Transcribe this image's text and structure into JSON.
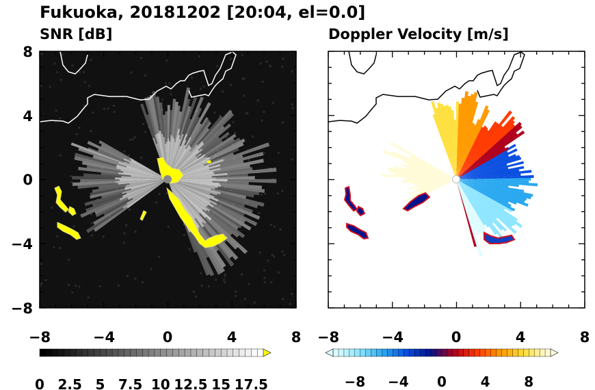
{
  "figure": {
    "title": "Fukuoka, 20181202 [20:04, el=0.0]"
  },
  "chart_data": [
    {
      "type": "heatmap",
      "title": "SNR [dB]",
      "xlim": [
        -8,
        8
      ],
      "ylim": [
        -8,
        8
      ],
      "x_ticks": [
        "−8",
        "−4",
        "0",
        "4",
        "8"
      ],
      "y_ticks": [
        "8",
        "4",
        "0",
        "−4",
        "−8"
      ],
      "background_color": "#111111",
      "colorbar": {
        "min": 0,
        "max": 18.5,
        "extend": "max",
        "tick_values": [
          0,
          2.5,
          5,
          7.5,
          10,
          12.5,
          15,
          17.5
        ],
        "tick_labels": [
          "0",
          "2.5",
          "5",
          "7.5",
          "10",
          "12.5",
          "15",
          "17.5"
        ],
        "colors": [
          "#000000",
          "#ffffff"
        ],
        "over_color": "#ffff00"
      }
    },
    {
      "type": "heatmap",
      "title": "Doppler Velocity [m/s]",
      "xlim": [
        -8,
        8
      ],
      "ylim": [
        -8,
        8
      ],
      "x_ticks": [
        "−8",
        "−4",
        "0",
        "4",
        "8"
      ],
      "y_ticks": [
        "8",
        "4",
        "0",
        "−4",
        "−8"
      ],
      "colorbar": {
        "min": -10,
        "max": 10,
        "extend": "both",
        "tick_values": [
          -8,
          -4,
          0,
          4,
          8
        ],
        "tick_labels": [
          "−8",
          "−4",
          "0",
          "4",
          "8"
        ],
        "colors": [
          "#dffcff",
          "#8fe6ff",
          "#2aa8f0",
          "#0a4fe0",
          "#00148c",
          "#b0001c",
          "#ff3a00",
          "#ff9a00",
          "#ffe040",
          "#fffbd8"
        ]
      }
    }
  ]
}
